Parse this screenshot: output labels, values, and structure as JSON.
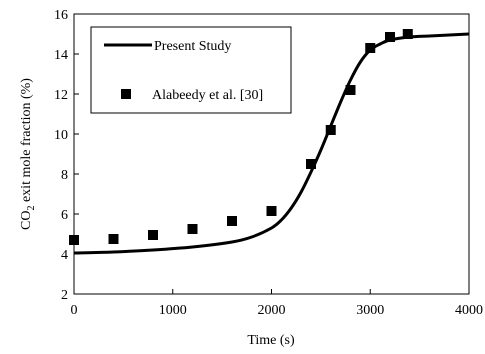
{
  "chart_data": {
    "type": "line",
    "xlabel": "Time (s)",
    "ylabel_main": "CO",
    "ylabel_sub": "2",
    "ylabel_rest": " exit mole fraction (%)",
    "xlim": [
      0,
      4000
    ],
    "ylim": [
      2,
      16
    ],
    "x_ticks": [
      0,
      1000,
      2000,
      3000,
      4000
    ],
    "y_ticks": [
      2,
      4,
      6,
      8,
      10,
      12,
      14,
      16
    ],
    "grid": false,
    "legend_position": "top-left",
    "series": [
      {
        "name": "Present Study",
        "style": "line",
        "color": "#000000",
        "x": [
          0,
          400,
          800,
          1200,
          1600,
          1800,
          2000,
          2100,
          2200,
          2300,
          2400,
          2500,
          2600,
          2700,
          2800,
          2900,
          3000,
          3100,
          3200,
          3400,
          3600,
          3800,
          4000
        ],
        "y": [
          4.05,
          4.1,
          4.2,
          4.35,
          4.6,
          4.85,
          5.3,
          5.7,
          6.3,
          7.1,
          8.1,
          9.2,
          10.4,
          11.6,
          12.7,
          13.6,
          14.2,
          14.5,
          14.7,
          14.85,
          14.9,
          14.95,
          15.0
        ]
      },
      {
        "name": "Alabeedy et al. [30]",
        "style": "marker",
        "marker": "square",
        "color": "#000000",
        "x": [
          0,
          400,
          800,
          1200,
          1600,
          2000,
          2400,
          2600,
          2800,
          3000,
          3200,
          3380
        ],
        "y": [
          4.7,
          4.75,
          4.95,
          5.25,
          5.65,
          6.15,
          8.5,
          10.2,
          12.2,
          14.3,
          14.85,
          15.0
        ]
      }
    ]
  }
}
